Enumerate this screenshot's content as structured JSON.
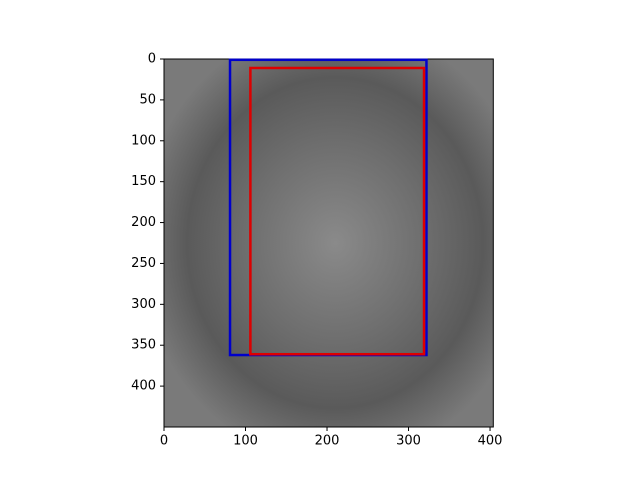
{
  "chart_data": {
    "type": "image",
    "xlim": [
      0,
      404
    ],
    "ylim": [
      450,
      0
    ],
    "xticks": [
      0,
      100,
      200,
      300,
      400
    ],
    "yticks": [
      0,
      50,
      100,
      150,
      200,
      250,
      300,
      350,
      400
    ],
    "boxes": [
      {
        "color": "#0000cc",
        "x0": 81,
        "y0": 1,
        "x1": 322,
        "y1": 362
      },
      {
        "color": "#dd0000",
        "x0": 106,
        "y0": 11,
        "x1": 319,
        "y1": 361
      }
    ]
  }
}
